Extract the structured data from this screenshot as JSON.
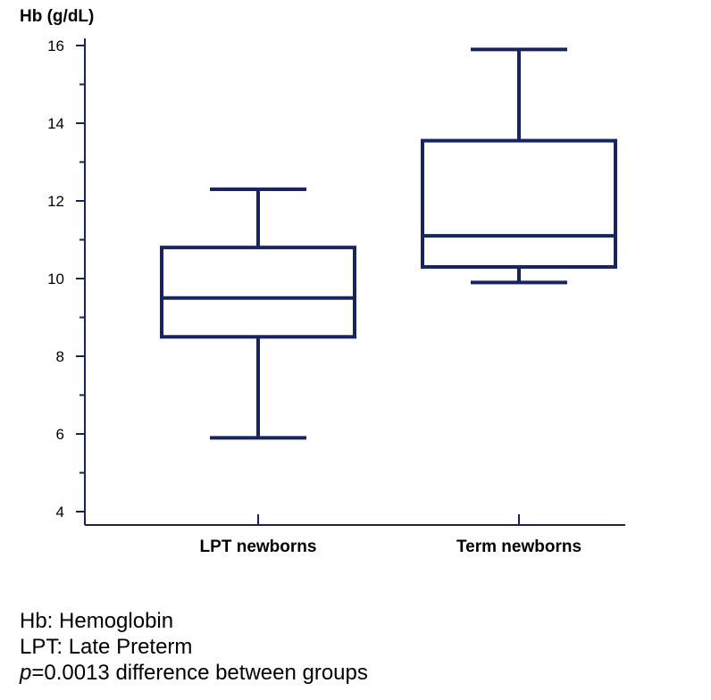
{
  "chart_data": {
    "type": "box",
    "ylabel": "Hb (g/dL)",
    "ylim": [
      4,
      16
    ],
    "y_major_ticks": [
      4,
      6,
      8,
      10,
      12,
      14,
      16
    ],
    "y_minor_ticks": [
      5,
      7,
      9,
      11,
      13,
      15
    ],
    "categories": [
      "LPT newborns",
      "Term newborns"
    ],
    "boxes": [
      {
        "category": "LPT newborns",
        "whisker_low": 5.9,
        "q1": 8.5,
        "median": 9.5,
        "q3": 10.8,
        "whisker_high": 12.3
      },
      {
        "category": "Term newborns",
        "whisker_low": 9.9,
        "q1": 10.3,
        "median": 11.1,
        "q3": 13.55,
        "whisker_high": 15.9
      }
    ],
    "grid": false,
    "color": "#17245f"
  },
  "footnotes": {
    "hb": "Hb: Hemoglobin",
    "lpt": "LPT: Late Preterm",
    "p_symbol": "p",
    "p_rest": "=0.0013 difference between groups"
  }
}
